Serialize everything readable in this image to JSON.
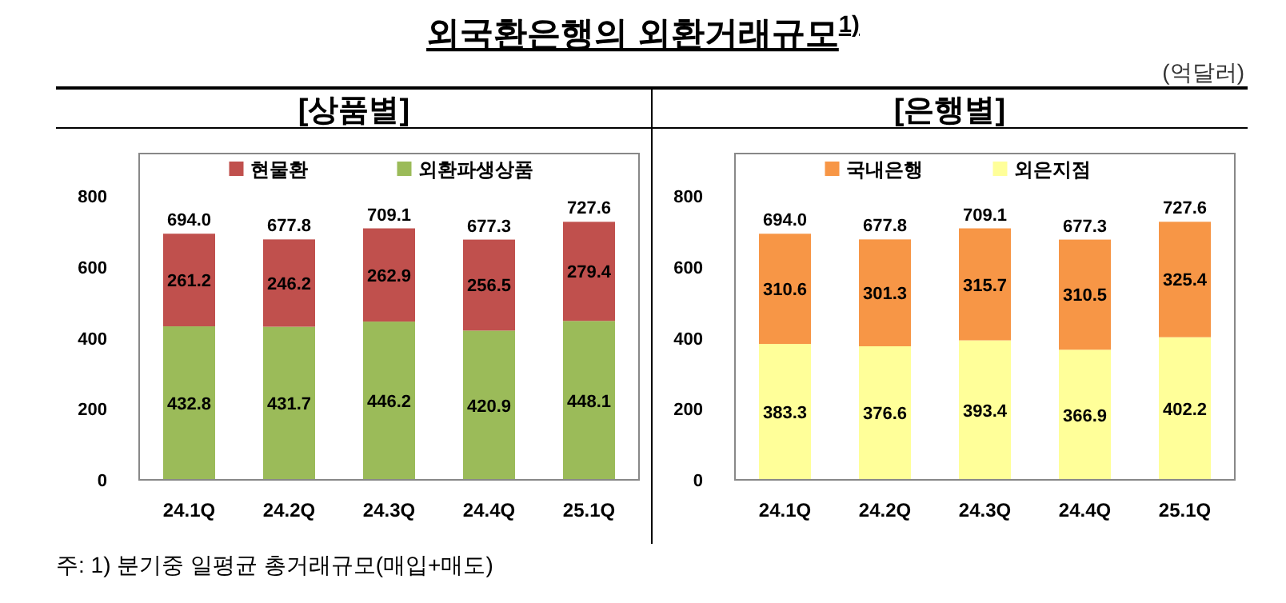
{
  "chart_data": [
    {
      "type": "bar",
      "title": "[상품별]",
      "categories": [
        "24.1Q",
        "24.2Q",
        "24.3Q",
        "24.4Q",
        "25.1Q"
      ],
      "stacked": true,
      "ylim": [
        0,
        920
      ],
      "yticks": [
        0,
        200,
        400,
        600,
        800
      ],
      "legend": "top",
      "data_labels": true,
      "series": [
        {
          "name": "외환파생상품",
          "color": "#9bbb59",
          "values": [
            432.8,
            431.7,
            446.2,
            420.9,
            448.1
          ]
        },
        {
          "name": "현물환",
          "color": "#c0504d",
          "values": [
            261.2,
            246.2,
            262.9,
            256.5,
            279.4
          ]
        }
      ],
      "totals": [
        "694.0",
        "677.8",
        "709.1",
        "677.3",
        "727.6"
      ],
      "annotations": [
        "외국환은행의 외환거래규모$^{1)}$",
        "(억달러)",
        "주: 1) 분기중 일평균 총거래규모(매입+매도)"
      ]
    },
    {
      "type": "bar",
      "title": "[은행별]",
      "categories": [
        "24.1Q",
        "24.2Q",
        "24.3Q",
        "24.4Q",
        "25.1Q"
      ],
      "stacked": true,
      "ylim": [
        0,
        920
      ],
      "yticks": [
        0,
        200,
        400,
        600,
        800
      ],
      "legend": "top",
      "data_labels": true,
      "series": [
        {
          "name": "외은지점",
          "color": "#ffff99",
          "values": [
            383.3,
            376.6,
            393.4,
            366.9,
            402.2
          ]
        },
        {
          "name": "국내은행",
          "color": "#f79646",
          "values": [
            310.6,
            301.3,
            315.7,
            310.5,
            325.4
          ]
        }
      ],
      "totals": [
        "694.0",
        "677.8",
        "709.1",
        "677.3",
        "727.6"
      ]
    }
  ]
}
